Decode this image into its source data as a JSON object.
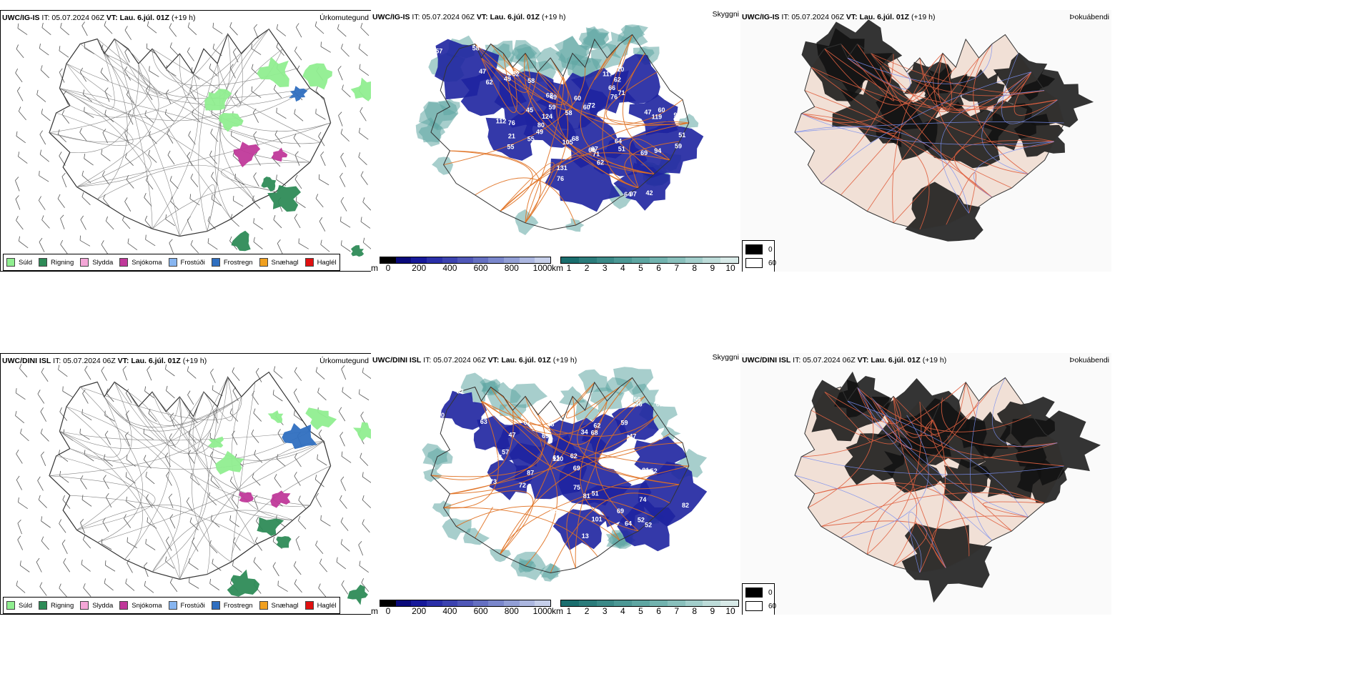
{
  "rows": [
    {
      "precip": {
        "model": "UWC/IG-IS",
        "it": "IT: 05.07.2024 06Z",
        "vt": "VT: Lau. 6.júl. 01Z",
        "lead": "(+19 h)",
        "right_title": "Úrkomutegund"
      },
      "cloud": {
        "model": "UWC/IG-IS",
        "it": "IT: 05.07.2024 06Z",
        "vt": "VT: Lau. 6.júl. 01Z",
        "lead": "(+19 h)",
        "right_title": "Skyggni",
        "labels": [
          "68",
          "60",
          "62",
          "95",
          "71",
          "69",
          "55",
          "112",
          "58",
          "94",
          "62",
          "47",
          "58",
          "97",
          "58",
          "76",
          "66",
          "47",
          "67",
          "51",
          "80",
          "21",
          "59",
          "51",
          "76",
          "49",
          "62",
          "42",
          "49",
          "72",
          "71",
          "60",
          "105",
          "64",
          "49",
          "76",
          "45",
          "59",
          "131",
          "52",
          "57",
          "64",
          "60",
          "10",
          "117",
          "119",
          "68",
          "69",
          "124",
          "55"
        ]
      },
      "fog": {
        "model": "UWC/IG-IS",
        "it": "IT: 05.07.2024 06Z",
        "vt": "VT: Lau. 6.júl. 01Z",
        "lead": "(+19 h)",
        "right_title": "Þokuábendi"
      }
    },
    {
      "precip": {
        "model": "UWC/DINI ISL",
        "it": "IT: 05.07.2024 06Z",
        "vt": "VT: Lau. 6.júl. 01Z",
        "lead": "(+19 h)",
        "right_title": "Úrkomutegund"
      },
      "cloud": {
        "model": "UWC/DINI ISL",
        "it": "IT: 05.07.2024 06Z",
        "vt": "VT: Lau. 6.júl. 01Z",
        "lead": "(+19 h)",
        "right_title": "Skyggni",
        "labels": [
          "68",
          "34",
          "62",
          "81",
          "75",
          "69",
          "62",
          "73",
          "67",
          "74",
          "13",
          "63",
          "90",
          "52",
          "61",
          "62",
          "46",
          "99",
          "69",
          "52",
          "120",
          "87",
          "69",
          "82",
          "101",
          "47",
          "52",
          "64",
          "48",
          "59",
          "56",
          "47",
          "81",
          "51",
          "72",
          "47",
          "57",
          "52",
          "63"
        ]
      },
      "fog": {
        "model": "UWC/DINI ISL",
        "it": "IT: 05.07.2024 06Z",
        "vt": "VT: Lau. 6.júl. 01Z",
        "lead": "(+19 h)",
        "right_title": "Þokuábendi"
      }
    }
  ],
  "precip_legend": [
    {
      "label": "Súld",
      "color": "#90ee90"
    },
    {
      "label": "Rigning",
      "color": "#2e8b57"
    },
    {
      "label": "Slydda",
      "color": "#f4a6d7"
    },
    {
      "label": "Snjókoma",
      "color": "#c0399a"
    },
    {
      "label": "Frostúði",
      "color": "#87b5f0"
    },
    {
      "label": "Frostregn",
      "color": "#2f6fc0"
    },
    {
      "label": "Snæhagl",
      "color": "#f0a020"
    },
    {
      "label": "Haglél",
      "color": "#e01010"
    }
  ],
  "base_scale": {
    "unit": "m",
    "ticks": [
      "0",
      "200",
      "400",
      "600",
      "800",
      "1000"
    ],
    "colors": [
      "#000000",
      "#0a0a7a",
      "#16199a",
      "#2a2fa8",
      "#3c43b0",
      "#5058b8",
      "#6570c2",
      "#7a87cc",
      "#929fd6",
      "#acb7e0",
      "#c6cfea"
    ]
  },
  "vis_scale": {
    "unit": "km",
    "ticks": [
      "1",
      "2",
      "3",
      "4",
      "5",
      "6",
      "7",
      "8",
      "9",
      "10"
    ],
    "colors": [
      "#1a6e6e",
      "#2b7c7b",
      "#3b8a88",
      "#4c9895",
      "#5ea6a2",
      "#72b3af",
      "#89c0bc",
      "#a2cecb",
      "#bddcd9",
      "#d8eae8"
    ]
  },
  "fog_scale": {
    "low": "0",
    "high": "60"
  }
}
